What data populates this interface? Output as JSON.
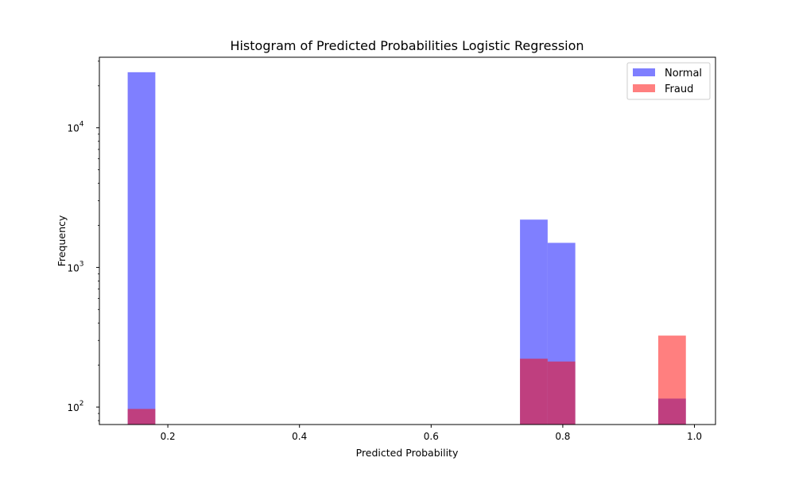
{
  "chart_data": {
    "type": "bar",
    "subtype": "histogram",
    "title": "Histogram of Predicted Probabilities Logistic Regression",
    "xlabel": "Predicted Probability",
    "ylabel": "Frequency",
    "xlim": [
      0.096,
      1.032
    ],
    "ylim": [
      75,
      32000
    ],
    "y_scale": "log",
    "x_ticks": [
      {
        "value": 0.2,
        "label": "0.2"
      },
      {
        "value": 0.4,
        "label": "0.4"
      },
      {
        "value": 0.6,
        "label": "0.6"
      },
      {
        "value": 0.8,
        "label": "0.8"
      },
      {
        "value": 1.0,
        "label": "1.0"
      }
    ],
    "y_ticks": [
      {
        "value": 100,
        "base": "10",
        "exp": "2"
      },
      {
        "value": 1000,
        "base": "10",
        "exp": "3"
      },
      {
        "value": 10000,
        "base": "10",
        "exp": "4"
      }
    ],
    "legend_position": "top-right",
    "grid": false,
    "series": [
      {
        "name": "Normal",
        "color": "#0000ff",
        "opacity": 0.5,
        "bins": [
          {
            "x0": 0.139,
            "x1": 0.181,
            "value": 25000
          },
          {
            "x0": 0.735,
            "x1": 0.777,
            "value": 2200
          },
          {
            "x0": 0.777,
            "x1": 0.819,
            "value": 1500
          },
          {
            "x0": 0.945,
            "x1": 0.987,
            "value": 115
          }
        ]
      },
      {
        "name": "Fraud",
        "color": "#ff0000",
        "opacity": 0.5,
        "bins": [
          {
            "x0": 0.139,
            "x1": 0.181,
            "value": 97
          },
          {
            "x0": 0.735,
            "x1": 0.777,
            "value": 222
          },
          {
            "x0": 0.777,
            "x1": 0.819,
            "value": 212
          },
          {
            "x0": 0.945,
            "x1": 0.987,
            "value": 325
          }
        ]
      }
    ]
  }
}
